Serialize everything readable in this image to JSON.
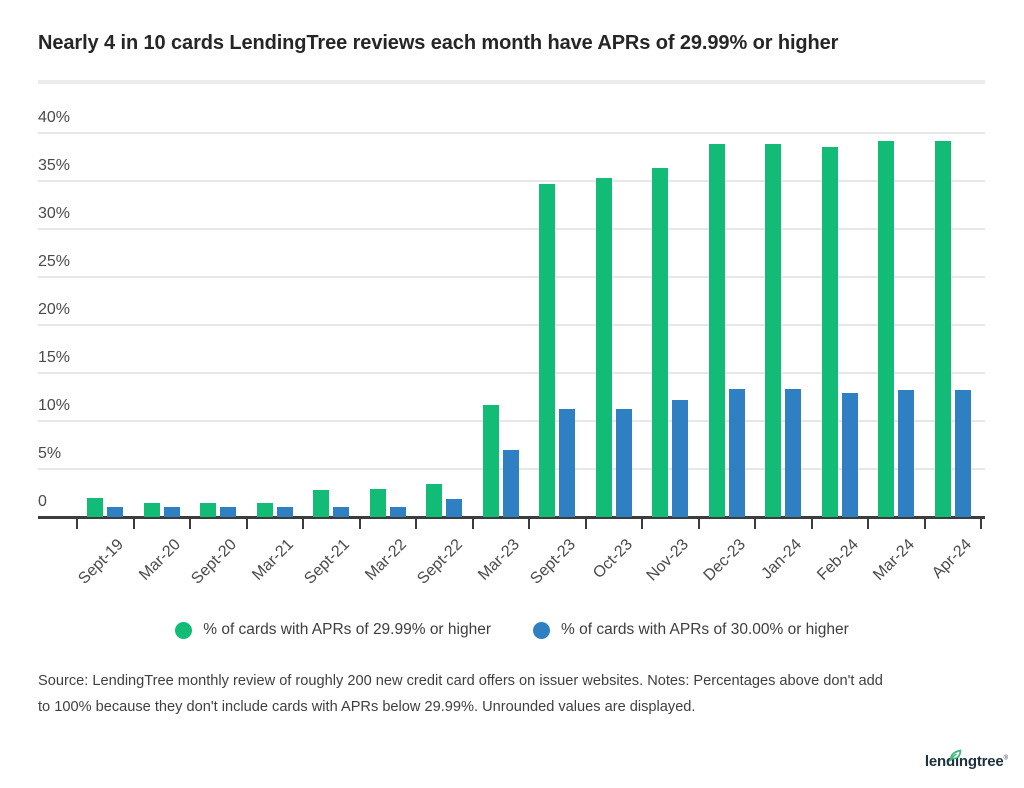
{
  "title": "Nearly 4 in 10 cards LendingTree reviews each month have APRs of 29.99% or higher",
  "chart_data": {
    "type": "bar",
    "categories": [
      "Sept-19",
      "Mar-20",
      "Sept-20",
      "Mar-21",
      "Sept-21",
      "Mar-22",
      "Sept-22",
      "Mar-23",
      "Sept-23",
      "Oct-23",
      "Nov-23",
      "Dec-23",
      "Jan-24",
      "Feb-24",
      "Mar-24",
      "Apr-24"
    ],
    "series": [
      {
        "name": "% of cards with APRs of 29.99% or higher",
        "color": "#12BC76",
        "values": [
          2.0,
          1.5,
          1.5,
          1.5,
          2.8,
          2.9,
          3.4,
          11.7,
          34.7,
          35.3,
          36.4,
          38.9,
          38.9,
          38.5,
          39.2,
          39.2
        ]
      },
      {
        "name": "% of cards with APRs of 30.00% or higher",
        "color": "#2F80C3",
        "values": [
          1.0,
          1.0,
          1.0,
          1.0,
          1.0,
          1.0,
          1.9,
          7.0,
          11.2,
          11.2,
          12.2,
          13.3,
          13.3,
          12.9,
          13.2,
          13.2
        ]
      }
    ],
    "title": "Nearly 4 in 10 cards LendingTree reviews each month have APRs of 29.99% or higher",
    "xlabel": "",
    "ylabel": "",
    "ylim": [
      0,
      40
    ],
    "yticks": [
      {
        "value": 40,
        "label": "40%"
      },
      {
        "value": 35,
        "label": "35%"
      },
      {
        "value": 30,
        "label": "30%"
      },
      {
        "value": 25,
        "label": "25%"
      },
      {
        "value": 20,
        "label": "20%"
      },
      {
        "value": 15,
        "label": "15%"
      },
      {
        "value": 10,
        "label": "10%"
      },
      {
        "value": 5,
        "label": "5%"
      },
      {
        "value": 0,
        "label": "0"
      }
    ],
    "grid": true,
    "legend_position": "bottom"
  },
  "source_note": {
    "lines": [
      "Source: LendingTree monthly review of roughly 200 new credit card offers on issuer websites. Notes: Percentages above don't add",
      "to 100% because they don't include cards with APRs below 29.99%. Unrounded values are displayed."
    ]
  },
  "logo": {
    "text": "lendingtree",
    "registered_mark": "®"
  },
  "colors": {
    "green_bar": "#12BC76",
    "blue_bar": "#2F80C3",
    "gridline": "#e7e7e7",
    "axis": "#3c3c3c",
    "logo_navy": "#1e3040",
    "leaf_green": "#3cb878"
  }
}
